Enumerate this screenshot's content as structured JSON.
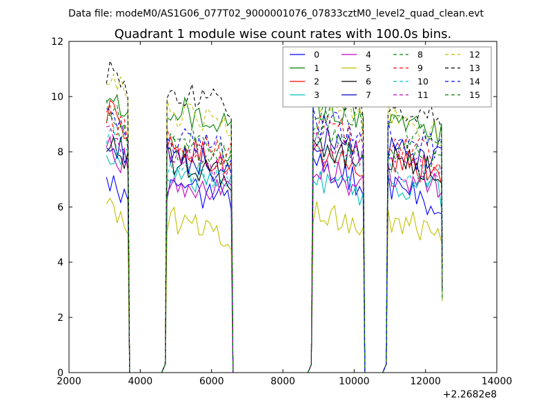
{
  "header": {
    "file_label": "Data file: modeM0/AS1G06_077T02_9000001076_07833cztM0_level2_quad_clean.evt"
  },
  "chart_data": {
    "type": "line",
    "title": "Quadrant 1 module wise count rates with 100.0s bins.",
    "xlabel": "",
    "ylabel": "",
    "x_offset_label": "+2.2682e8",
    "xlim": [
      2000,
      14000
    ],
    "ylim": [
      0,
      12
    ],
    "x_ticks": [
      2000,
      4000,
      6000,
      8000,
      10000,
      12000,
      14000
    ],
    "x_tick_labels": [
      "2000",
      "4000",
      "6000",
      "8000",
      "10000",
      "12000",
      "14000"
    ],
    "y_ticks": [
      0,
      2,
      4,
      6,
      8,
      10,
      12
    ],
    "y_tick_labels": [
      "0",
      "2",
      "4",
      "6",
      "8",
      "10",
      "12"
    ],
    "legend_position": "top-right",
    "grid": false,
    "segments": [
      {
        "start": 3050,
        "end": 3650,
        "step": 100
      },
      {
        "start": 4750,
        "end": 6550,
        "step": 100
      },
      {
        "start": 8850,
        "end": 10250,
        "step": 100
      },
      {
        "start": 10950,
        "end": 12450,
        "step": 100
      }
    ],
    "gaps": [
      {
        "from": 3650,
        "to": 4750,
        "baseline": 0
      },
      {
        "from": 6550,
        "to": 8850,
        "baseline": 0
      },
      {
        "from": 10250,
        "to": 10950,
        "baseline": 0
      }
    ],
    "series": [
      {
        "name": "0",
        "color": "#0000ff",
        "dash": "solid",
        "levels": [
          7.0,
          6.8,
          7.5,
          6.7
        ]
      },
      {
        "name": "1",
        "color": "#008000",
        "dash": "solid",
        "levels": [
          10.0,
          9.6,
          9.8,
          9.3
        ]
      },
      {
        "name": "2",
        "color": "#ff0000",
        "dash": "solid",
        "levels": [
          9.5,
          8.2,
          7.9,
          7.8
        ]
      },
      {
        "name": "3",
        "color": "#00bfbf",
        "dash": "solid",
        "levels": [
          8.2,
          7.3,
          7.1,
          7.0
        ]
      },
      {
        "name": "4",
        "color": "#bf00bf",
        "dash": "solid",
        "levels": [
          8.1,
          7.0,
          7.4,
          7.2
        ]
      },
      {
        "name": "5",
        "color": "#bfbf00",
        "dash": "solid",
        "levels": [
          6.1,
          5.6,
          5.8,
          5.6
        ]
      },
      {
        "name": "6",
        "color": "#000000",
        "dash": "solid",
        "levels": [
          8.4,
          7.7,
          8.3,
          7.8
        ]
      },
      {
        "name": "7",
        "color": "#0000bb",
        "dash": "solid",
        "levels": [
          8.5,
          7.9,
          8.6,
          8.2
        ]
      },
      {
        "name": "8",
        "color": "#008000",
        "dash": "dashed",
        "levels": [
          9.8,
          8.7,
          9.6,
          8.9
        ]
      },
      {
        "name": "9",
        "color": "#ff0000",
        "dash": "dashed",
        "levels": [
          9.4,
          8.4,
          9.0,
          8.4
        ]
      },
      {
        "name": "10",
        "color": "#00bfbf",
        "dash": "dashed",
        "levels": [
          8.6,
          7.6,
          8.2,
          7.6
        ]
      },
      {
        "name": "11",
        "color": "#bf00bf",
        "dash": "dashed",
        "levels": [
          8.8,
          8.0,
          8.5,
          8.0
        ]
      },
      {
        "name": "12",
        "color": "#bfbf00",
        "dash": "dashed",
        "levels": [
          10.6,
          9.5,
          9.9,
          9.3
        ]
      },
      {
        "name": "13",
        "color": "#000000",
        "dash": "dashed",
        "levels": [
          11.0,
          10.2,
          10.4,
          9.8
        ]
      },
      {
        "name": "14",
        "color": "#0000ff",
        "dash": "dashed",
        "levels": [
          9.2,
          8.5,
          9.2,
          8.6
        ]
      },
      {
        "name": "15",
        "color": "#008000",
        "dash": "dashed",
        "levels": [
          9.0,
          8.3,
          8.8,
          8.3
        ]
      }
    ]
  }
}
